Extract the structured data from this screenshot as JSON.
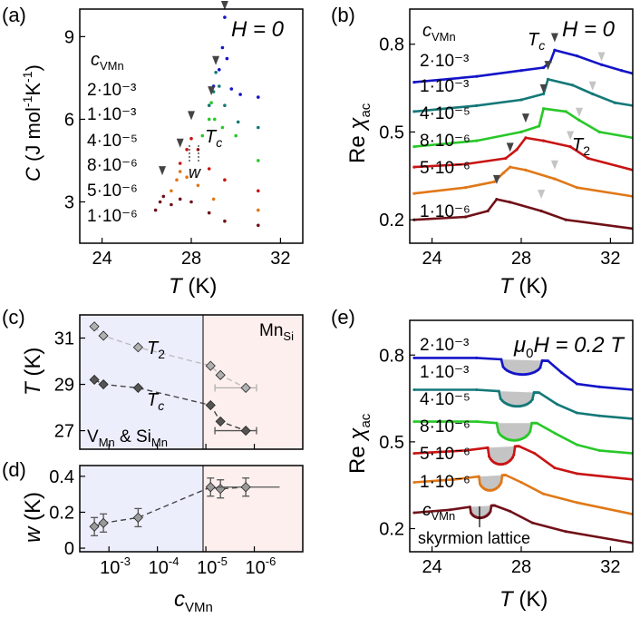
{
  "chart_data": [
    {
      "panel": "a",
      "panel_label": "(a)",
      "type": "line",
      "xlabel_main": "T",
      "xlabel_unit": "(K)",
      "ylabel_main": "C",
      "ylabel_unit": "(J mol",
      "ylabel_exp1": "-1",
      "ylabel_k": "K",
      "ylabel_exp2": "-1",
      "ylabel_close": ")",
      "field": "H = 0",
      "legend_title": "c",
      "legend_title_sub": "VMn",
      "tc_label": "T",
      "tc_sub": "c",
      "w_label": "w",
      "xlim": [
        23,
        33
      ],
      "ylim": [
        1.5,
        10
      ],
      "xticks": [
        24,
        28,
        32
      ],
      "yticks": [
        3,
        6,
        9
      ],
      "series": [
        {
          "label": "2·10⁻³",
          "color": "#1414c8",
          "tc": 29.5,
          "tc_y": 10.0,
          "base": [
            3.5,
            6.2,
            8.4,
            6.7
          ],
          "peak": [
            [
              29.0,
              7.2
            ],
            [
              29.25,
              7.8
            ],
            [
              29.4,
              8.6
            ],
            [
              29.5,
              9.7
            ],
            [
              29.6,
              8.2
            ],
            [
              29.8,
              7.1
            ],
            [
              30.2,
              6.9
            ],
            [
              31.0,
              6.8
            ]
          ]
        },
        {
          "label": "1·10⁻³",
          "color": "#147878",
          "tc": 29.1,
          "tc_y": 8.0,
          "base": [
            3.0,
            5.8,
            7.3,
            5.6
          ],
          "peak": [
            [
              28.8,
              6.5
            ],
            [
              29.0,
              7.0
            ],
            [
              29.1,
              7.7
            ],
            [
              29.25,
              7.2
            ],
            [
              29.5,
              6.5
            ],
            [
              30.1,
              5.9
            ],
            [
              31.0,
              5.7
            ]
          ]
        },
        {
          "label": "4·10⁻⁵",
          "color": "#28c828",
          "tc": 28.9,
          "tc_y": 6.9,
          "base": [
            2.6,
            4.7,
            6.1,
            4.3
          ],
          "peak": [
            [
              28.5,
              5.4
            ],
            [
              28.8,
              6.0
            ],
            [
              28.9,
              6.6
            ],
            [
              29.05,
              6.0
            ],
            [
              29.4,
              5.7
            ],
            [
              30.0,
              5.4
            ],
            [
              31.0,
              4.5
            ]
          ]
        },
        {
          "label": "8·10⁻⁶",
          "color": "#c81414",
          "tc": 28.0,
          "tc_y": 6.0,
          "base": [
            2.1,
            3.9,
            5.0,
            3.2
          ],
          "peak": [
            [
              27.5,
              4.4
            ],
            [
              27.8,
              4.9
            ],
            [
              28.0,
              5.3
            ],
            [
              28.3,
              4.9
            ],
            [
              28.8,
              4.2
            ],
            [
              29.5,
              3.8
            ],
            [
              31.0,
              3.4
            ]
          ]
        },
        {
          "label": "5·10⁻⁶",
          "color": "#e07818",
          "tc": 27.5,
          "tc_y": 5.0,
          "base": [
            1.6,
            3.0,
            4.0,
            2.5
          ],
          "peak": [
            [
              27.1,
              3.4
            ],
            [
              27.35,
              3.8
            ],
            [
              27.5,
              4.1
            ],
            [
              27.8,
              3.9
            ],
            [
              28.3,
              3.6
            ],
            [
              29.0,
              3.1
            ],
            [
              31.0,
              2.7
            ]
          ]
        },
        {
          "label": "1·10⁻⁶",
          "color": "#701018",
          "tc": 26.7,
          "tc_y": 4.0,
          "base": [
            1.3,
            2.5,
            3.1,
            2.0
          ],
          "peak": [
            [
              26.4,
              2.7
            ],
            [
              26.6,
              3.0
            ],
            [
              26.75,
              3.2
            ],
            [
              27.1,
              2.9
            ],
            [
              27.5,
              3.1
            ],
            [
              28.0,
              3.0
            ],
            [
              28.8,
              2.6
            ],
            [
              29.5,
              2.3
            ],
            [
              31.0,
              2.15
            ]
          ]
        }
      ]
    },
    {
      "panel": "b",
      "panel_label": "(b)",
      "type": "line",
      "xlabel_main": "T",
      "xlabel_unit": "(K)",
      "ylabel_main": "Re ",
      "ylabel_chi": "χ",
      "ylabel_sub": "ac",
      "field": "H = 0",
      "legend_title": "c",
      "legend_title_sub": "VMn",
      "tc_label": "T",
      "tc_sub": "c",
      "t2_label": "T",
      "t2_sub": "2",
      "xlim": [
        23,
        33
      ],
      "ylim": [
        0.12,
        0.92
      ],
      "xticks": [
        24,
        28,
        32
      ],
      "yticks": [
        0.2,
        0.5,
        0.8
      ],
      "series": [
        {
          "label": "2·10⁻³",
          "color": "#1414c8",
          "tc": 29.5,
          "t2": 31.6,
          "tc_y": 0.81,
          "t2_y": 0.745,
          "pts": [
            [
              23.2,
              0.67
            ],
            [
              26,
              0.69
            ],
            [
              28,
              0.71
            ],
            [
              29.0,
              0.72
            ],
            [
              29.3,
              0.74
            ],
            [
              29.5,
              0.78
            ],
            [
              30.5,
              0.76
            ],
            [
              31.6,
              0.73
            ],
            [
              32.5,
              0.71
            ],
            [
              33,
              0.7
            ]
          ]
        },
        {
          "label": "1·10⁻³",
          "color": "#147878",
          "tc": 29.2,
          "t2": 31.2,
          "tc_y": 0.715,
          "t2_y": 0.645,
          "pts": [
            [
              23.2,
              0.57
            ],
            [
              26,
              0.59
            ],
            [
              28,
              0.61
            ],
            [
              29.0,
              0.63
            ],
            [
              29.2,
              0.68
            ],
            [
              30.3,
              0.66
            ],
            [
              31.2,
              0.63
            ],
            [
              32.2,
              0.6
            ],
            [
              33,
              0.59
            ]
          ]
        },
        {
          "label": "4·10⁻⁵",
          "color": "#28c828",
          "tc": 29.0,
          "t2": 30.6,
          "tc_y": 0.635,
          "t2_y": 0.555,
          "pts": [
            [
              23.2,
              0.45
            ],
            [
              26,
              0.47
            ],
            [
              28,
              0.5
            ],
            [
              28.8,
              0.52
            ],
            [
              29.0,
              0.58
            ],
            [
              30.0,
              0.57
            ],
            [
              30.6,
              0.54
            ],
            [
              31.5,
              0.5
            ],
            [
              33,
              0.48
            ]
          ]
        },
        {
          "label": "8·10⁻⁶",
          "color": "#c81414",
          "tc": 28.2,
          "t2": 30.2,
          "tc_y": 0.535,
          "t2_y": 0.475,
          "pts": [
            [
              23.2,
              0.38
            ],
            [
              25.5,
              0.39
            ],
            [
              27.3,
              0.41
            ],
            [
              27.8,
              0.44
            ],
            [
              28.2,
              0.48
            ],
            [
              29.0,
              0.47
            ],
            [
              30.2,
              0.45
            ],
            [
              31.0,
              0.41
            ],
            [
              33,
              0.37
            ]
          ]
        },
        {
          "label": "5·10⁻⁶",
          "color": "#e07818",
          "tc": 27.5,
          "t2": 29.5,
          "tc_y": 0.435,
          "t2_y": 0.375,
          "pts": [
            [
              23.2,
              0.29
            ],
            [
              25.5,
              0.31
            ],
            [
              26.8,
              0.33
            ],
            [
              27.2,
              0.36
            ],
            [
              27.5,
              0.38
            ],
            [
              28.2,
              0.37
            ],
            [
              29.5,
              0.34
            ],
            [
              30.5,
              0.31
            ],
            [
              33,
              0.28
            ]
          ]
        },
        {
          "label": "1·10⁻⁶",
          "color": "#701018",
          "tc": 26.9,
          "t2": 28.9,
          "tc_y": 0.325,
          "t2_y": 0.275,
          "pts": [
            [
              23.2,
              0.2
            ],
            [
              25.5,
              0.21
            ],
            [
              26.5,
              0.23
            ],
            [
              26.9,
              0.27
            ],
            [
              27.5,
              0.26
            ],
            [
              28.9,
              0.23
            ],
            [
              30.0,
              0.2
            ],
            [
              33,
              0.17
            ]
          ]
        }
      ]
    },
    {
      "panel": "c",
      "panel_label": "(c)",
      "type": "scatter",
      "ylabel_main": "T",
      "ylabel_unit": "(K)",
      "yticks": [
        27,
        29,
        31
      ],
      "ylim": [
        26.2,
        32.0
      ],
      "xscale": "log-reversed",
      "xlim": [
        0.004,
        1e-07
      ],
      "region_left_label": "V",
      "region_left_sub": "Mn",
      "region_left_amp": " & Si",
      "region_left_sub2": "Mn",
      "region_right_label": "Mn",
      "region_right_sub": "Si",
      "region_boundary": 2.5e-05,
      "series": [
        {
          "name_main": "T",
          "name_sub": "2",
          "color": "#b0b0b0",
          "x": [
            0.002,
            0.0013,
            0.00025,
            8e-06,
            5e-06,
            1.5e-06
          ],
          "y": [
            31.5,
            31.1,
            30.6,
            29.8,
            29.4,
            28.85
          ],
          "xerr_lo": [
            0,
            0,
            0,
            0,
            0,
            5e-06
          ],
          "xerr_hi": [
            0,
            0,
            0,
            0,
            0,
            6e-07
          ]
        },
        {
          "name_main": "T",
          "name_sub": "c",
          "color": "#555555",
          "x": [
            0.002,
            0.0013,
            0.00025,
            8e-06,
            5e-06,
            1.5e-06
          ],
          "y": [
            29.2,
            29.0,
            28.85,
            28.1,
            27.4,
            27.0
          ],
          "xerr_lo": [
            0,
            0,
            0,
            0,
            0,
            5e-06
          ],
          "xerr_hi": [
            0,
            0,
            0,
            0,
            0,
            6e-07
          ]
        }
      ]
    },
    {
      "panel": "d",
      "panel_label": "(d)",
      "type": "scatter",
      "ylabel_main": "w",
      "ylabel_unit": "(K)",
      "xlabel_main": "c",
      "xlabel_sub": "VMn",
      "yticks": [
        0,
        0.2,
        0.4
      ],
      "ytick_labels": [
        "0",
        "0.2",
        "0.4"
      ],
      "ylim": [
        -0.02,
        0.46
      ],
      "xscale": "log-reversed",
      "xlim": [
        0.004,
        1e-07
      ],
      "xticks": [
        0.001,
        0.0001,
        1e-05,
        1e-06
      ],
      "xtick_base": "10",
      "xtick_exps": [
        "-3",
        "-4",
        "-5",
        "-6"
      ],
      "series": [
        {
          "color": "#9a9a9a",
          "x": [
            0.002,
            0.0013,
            0.00025,
            8e-06,
            5e-06,
            1.5e-06
          ],
          "y": [
            0.12,
            0.14,
            0.17,
            0.34,
            0.33,
            0.34
          ]
        }
      ]
    },
    {
      "panel": "e",
      "panel_label": "(e)",
      "type": "line",
      "xlabel_main": "T",
      "xlabel_unit": "(K)",
      "ylabel_main": "Re ",
      "ylabel_chi": "χ",
      "ylabel_sub": "ac",
      "field_mu": "μ",
      "field_sub": "0",
      "field_rest": "H = 0.2 T",
      "legend_title": "c",
      "legend_title_sub": "VMn",
      "annotation": "skyrmion lattice",
      "xlim": [
        23,
        33
      ],
      "ylim": [
        0.12,
        0.92
      ],
      "xticks": [
        24,
        28,
        32
      ],
      "yticks": [
        0.2,
        0.5,
        0.8
      ],
      "series": [
        {
          "label": "2·10⁻³",
          "color": "#1414c8",
          "pocket": [
            27.1,
            29.2
          ],
          "depth": 0.05,
          "pts": [
            [
              23.2,
              0.79
            ],
            [
              26.0,
              0.79
            ],
            [
              27.1,
              0.785
            ],
            [
              29.2,
              0.78
            ],
            [
              29.8,
              0.74
            ],
            [
              30.5,
              0.7
            ],
            [
              31.5,
              0.69
            ],
            [
              33,
              0.68
            ]
          ]
        },
        {
          "label": "1·10⁻³",
          "color": "#147878",
          "pocket": [
            27.0,
            28.8
          ],
          "depth": 0.05,
          "pts": [
            [
              23.2,
              0.68
            ],
            [
              26.0,
              0.68
            ],
            [
              27.0,
              0.675
            ],
            [
              28.8,
              0.67
            ],
            [
              29.6,
              0.63
            ],
            [
              30.5,
              0.6
            ],
            [
              31.5,
              0.59
            ],
            [
              33,
              0.58
            ]
          ]
        },
        {
          "label": "4·10⁻⁵",
          "color": "#28c828",
          "pocket": [
            26.9,
            28.7
          ],
          "depth": 0.06,
          "pts": [
            [
              23.2,
              0.57
            ],
            [
              26.0,
              0.57
            ],
            [
              26.9,
              0.565
            ],
            [
              28.7,
              0.565
            ],
            [
              29.5,
              0.53
            ],
            [
              30.5,
              0.49
            ],
            [
              31.5,
              0.47
            ],
            [
              33,
              0.46
            ]
          ]
        },
        {
          "label": "8·10⁻⁶",
          "color": "#c81414",
          "pocket": [
            26.5,
            27.9
          ],
          "depth": 0.06,
          "pts": [
            [
              23.2,
              0.46
            ],
            [
              25.5,
              0.47
            ],
            [
              26.5,
              0.48
            ],
            [
              27.9,
              0.485
            ],
            [
              28.6,
              0.46
            ],
            [
              29.5,
              0.41
            ],
            [
              30.5,
              0.39
            ],
            [
              33,
              0.37
            ]
          ]
        },
        {
          "label": "5·10⁻⁶",
          "color": "#e07818",
          "pocket": [
            26.1,
            27.3
          ],
          "depth": 0.05,
          "pts": [
            [
              23.2,
              0.36
            ],
            [
              25.0,
              0.37
            ],
            [
              26.1,
              0.38
            ],
            [
              27.3,
              0.385
            ],
            [
              28.0,
              0.36
            ],
            [
              29.0,
              0.32
            ],
            [
              30.5,
              0.29
            ],
            [
              33,
              0.25
            ]
          ]
        },
        {
          "label": "1·10⁻⁶",
          "color": "#701018",
          "pocket": [
            25.7,
            26.8
          ],
          "depth": 0.04,
          "pts": [
            [
              23.2,
              0.255
            ],
            [
              24.8,
              0.265
            ],
            [
              25.7,
              0.275
            ],
            [
              26.8,
              0.28
            ],
            [
              27.5,
              0.26
            ],
            [
              28.5,
              0.22
            ],
            [
              30.0,
              0.19
            ],
            [
              33,
              0.15
            ]
          ]
        }
      ]
    }
  ]
}
